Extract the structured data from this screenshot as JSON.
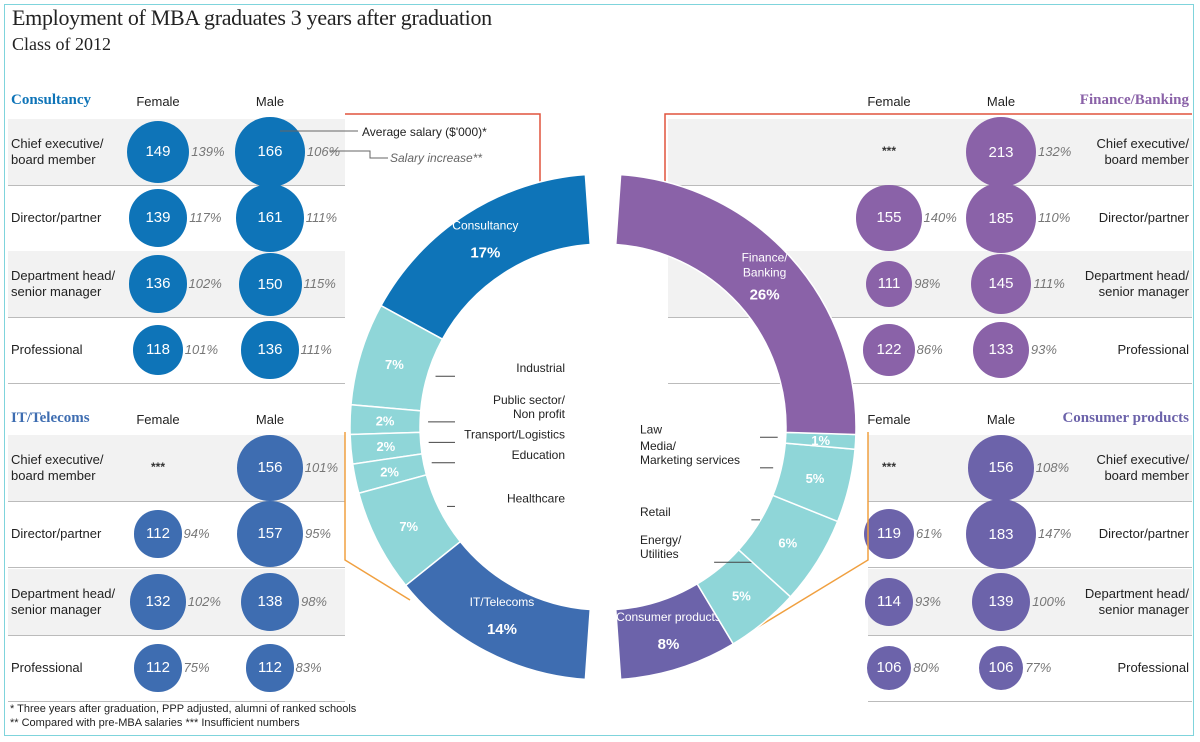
{
  "title": "Employment of MBA graduates 3 years after graduation",
  "subtitle": "Class of 2012",
  "footnotes": [
    "* Three years after graduation, PPP adjusted, alumni of ranked schools",
    "** Compared with pre-MBA salaries     *** Insufficient numbers"
  ],
  "legend": {
    "salary": "Average salary ($'000)*",
    "increase": "Salary increase**"
  },
  "column_headers": {
    "female": "Female",
    "male": "Male"
  },
  "colors": {
    "consultancy": "#0e74b8",
    "it_telecoms": "#3e6db1",
    "finance": "#8a62a8",
    "consumer": "#6c63aa",
    "other": "#8fd6d8"
  },
  "chart_data": [
    {
      "type": "pie",
      "variant": "donut",
      "title": "",
      "slices": [
        {
          "label": "Consultancy",
          "value": 17,
          "value_label": "17%",
          "color": "#0e74b8"
        },
        {
          "label": "Industrial",
          "value": 7,
          "value_label": "7%",
          "color": "#8fd6d8"
        },
        {
          "label": "Public sector/ Non profit",
          "value": 2,
          "value_label": "2%",
          "color": "#8fd6d8"
        },
        {
          "label": "Transport/Logistics",
          "value": 2,
          "value_label": "2%",
          "color": "#8fd6d8"
        },
        {
          "label": "Education",
          "value": 2,
          "value_label": "2%",
          "color": "#8fd6d8"
        },
        {
          "label": "Healthcare",
          "value": 7,
          "value_label": "7%",
          "color": "#8fd6d8"
        },
        {
          "label": "IT/Telecoms",
          "value": 14,
          "value_label": "14%",
          "color": "#3e6db1"
        },
        {
          "label": "Consumer products",
          "value": 8,
          "value_label": "8%",
          "color": "#6c63aa"
        },
        {
          "label": "Energy/ Utilities",
          "value": 5,
          "value_label": "5%",
          "color": "#8fd6d8"
        },
        {
          "label": "Retail",
          "value": 6,
          "value_label": "6%",
          "color": "#8fd6d8"
        },
        {
          "label": "Media/ Marketing services",
          "value": 5,
          "value_label": "5%",
          "color": "#8fd6d8"
        },
        {
          "label": "Law",
          "value": 1,
          "value_label": "1%",
          "color": "#8fd6d8"
        },
        {
          "label": "Finance/ Banking",
          "value": 26,
          "value_label": "26%",
          "color": "#8a62a8"
        }
      ]
    },
    {
      "type": "table",
      "sector": "Consultancy",
      "rows": [
        {
          "role": "Chief executive/ board member",
          "female_salary": 149,
          "female_increase": "139%",
          "male_salary": 166,
          "male_increase": "106%"
        },
        {
          "role": "Director/partner",
          "female_salary": 139,
          "female_increase": "117%",
          "male_salary": 161,
          "male_increase": "111%"
        },
        {
          "role": "Department head/ senior manager",
          "female_salary": 136,
          "female_increase": "102%",
          "male_salary": 150,
          "male_increase": "115%"
        },
        {
          "role": "Professional",
          "female_salary": 118,
          "female_increase": "101%",
          "male_salary": 136,
          "male_increase": "111%"
        }
      ]
    },
    {
      "type": "table",
      "sector": "IT/Telecoms",
      "rows": [
        {
          "role": "Chief executive/ board member",
          "female_salary": "***",
          "female_increase": "",
          "male_salary": 156,
          "male_increase": "101%"
        },
        {
          "role": "Director/partner",
          "female_salary": 112,
          "female_increase": "94%",
          "male_salary": 157,
          "male_increase": "95%"
        },
        {
          "role": "Department head/ senior manager",
          "female_salary": 132,
          "female_increase": "102%",
          "male_salary": 138,
          "male_increase": "98%"
        },
        {
          "role": "Professional",
          "female_salary": 112,
          "female_increase": "75%",
          "male_salary": 112,
          "male_increase": "83%"
        }
      ]
    },
    {
      "type": "table",
      "sector": "Finance/Banking",
      "rows": [
        {
          "role": "Chief executive/ board member",
          "female_salary": "***",
          "female_increase": "",
          "male_salary": 213,
          "male_increase": "132%"
        },
        {
          "role": "Director/partner",
          "female_salary": 155,
          "female_increase": "140%",
          "male_salary": 185,
          "male_increase": "110%"
        },
        {
          "role": "Department head/ senior manager",
          "female_salary": 111,
          "female_increase": "98%",
          "male_salary": 145,
          "male_increase": "111%"
        },
        {
          "role": "Professional",
          "female_salary": 122,
          "female_increase": "86%",
          "male_salary": 133,
          "male_increase": "93%"
        }
      ]
    },
    {
      "type": "table",
      "sector": "Consumer products",
      "rows": [
        {
          "role": "Chief executive/ board member",
          "female_salary": "***",
          "female_increase": "",
          "male_salary": 156,
          "male_increase": "108%"
        },
        {
          "role": "Director/partner",
          "female_salary": 119,
          "female_increase": "61%",
          "male_salary": 183,
          "male_increase": "147%"
        },
        {
          "role": "Department head/ senior manager",
          "female_salary": 114,
          "female_increase": "93%",
          "male_salary": 139,
          "male_increase": "100%"
        },
        {
          "role": "Professional",
          "female_salary": 106,
          "female_increase": "80%",
          "male_salary": 106,
          "male_increase": "77%"
        }
      ]
    }
  ]
}
